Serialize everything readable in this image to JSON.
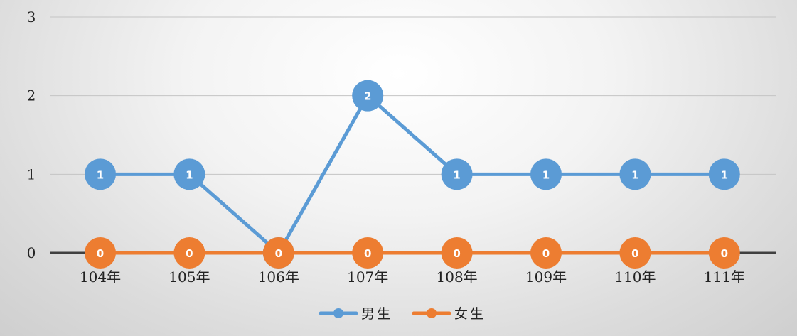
{
  "chart_data": {
    "type": "line",
    "categories": [
      "104年",
      "105年",
      "106年",
      "107年",
      "108年",
      "109年",
      "110年",
      "111年"
    ],
    "series": [
      {
        "name": "男生",
        "values": [
          1,
          1,
          0,
          2,
          1,
          1,
          1,
          1
        ],
        "color": "#5B9BD5"
      },
      {
        "name": "女生",
        "values": [
          0,
          0,
          0,
          0,
          0,
          0,
          0,
          0
        ],
        "color": "#ED7D31"
      }
    ],
    "yticks": [
      "0",
      "1",
      "2",
      "3"
    ],
    "ylim": [
      0,
      3
    ],
    "data_labels": true,
    "grid": true,
    "legend": "bottom-center"
  }
}
